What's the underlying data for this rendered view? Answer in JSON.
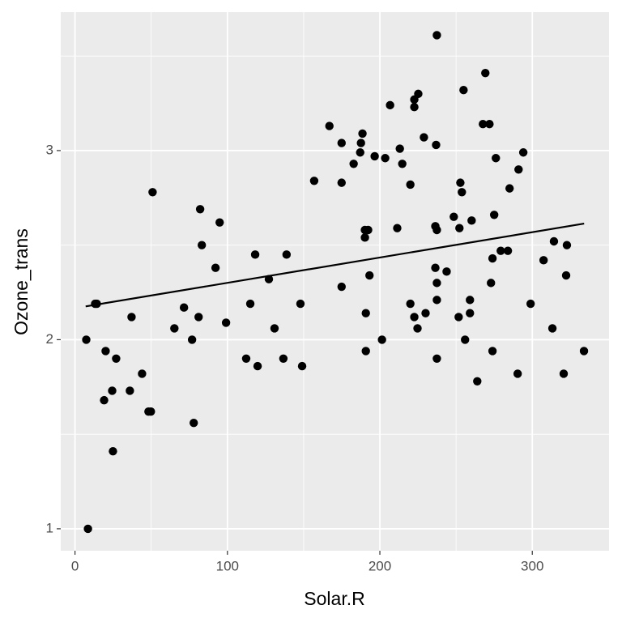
{
  "chart_data": {
    "type": "scatter",
    "x_label": "Solar.R",
    "y_label": "Ozone_trans",
    "xlim": [
      -9.35,
      350.35
    ],
    "ylim": [
      0.884,
      3.732
    ],
    "xticks": [
      0,
      100,
      200,
      300
    ],
    "yticks": [
      1,
      2,
      3
    ],
    "x_minor": [
      50,
      150,
      250
    ],
    "y_minor": [
      1.5,
      2.5,
      3.5
    ],
    "grid": true,
    "color": "#000000",
    "x": [
      7.4,
      8.5,
      13.2,
      14.3,
      20.1,
      19.1,
      24.4,
      27,
      24.9,
      37.1,
      36,
      44,
      48.2,
      49.8,
      50.9,
      65.2,
      71.5,
      76.8,
      77.9,
      81.1,
      82.1,
      83.2,
      92.2,
      94.9,
      99.1,
      112.3,
      115,
      118.2,
      119.8,
      127.2,
      130.9,
      136.7,
      138.8,
      147.9,
      149,
      156.9,
      166.9,
      174.9,
      174.9,
      174.9,
      182.8,
      187.1,
      188.6,
      187.6,
      190.2,
      190.2,
      192.3,
      193.2,
      190.8,
      190.8,
      196.6,
      201.4,
      203.5,
      206.7,
      211.4,
      213.1,
      214.7,
      220,
      220,
      222.6,
      224.7,
      222.6,
      225.2,
      222.6,
      228.9,
      230,
      236.9,
      237.4,
      236.4,
      237.4,
      236.4,
      237.4,
      237.4,
      237.4,
      243.8,
      248.5,
      252.8,
      253.8,
      252.2,
      251.7,
      254.9,
      255.9,
      259.1,
      260.2,
      259.1,
      263.9,
      267.6,
      269.2,
      271.9,
      272.9,
      273.9,
      273.9,
      275,
      276.1,
      279.3,
      284,
      285.1,
      290.4,
      291,
      294.1,
      298.9,
      307.4,
      313.2,
      314.2,
      320.6,
      322.2,
      322.7,
      333.9
    ],
    "y": [
      2.0,
      1.0,
      2.19,
      2.19,
      1.94,
      1.68,
      1.73,
      1.9,
      1.41,
      2.12,
      1.73,
      1.82,
      1.62,
      1.62,
      2.78,
      2.06,
      2.17,
      2.0,
      1.56,
      2.12,
      2.69,
      2.5,
      2.38,
      2.62,
      2.09,
      1.9,
      2.19,
      2.45,
      1.86,
      2.32,
      2.06,
      1.9,
      2.45,
      2.19,
      1.86,
      2.84,
      3.13,
      2.28,
      3.04,
      2.83,
      2.93,
      2.99,
      3.09,
      3.04,
      2.54,
      2.58,
      2.58,
      2.34,
      2.14,
      1.94,
      2.97,
      2.0,
      2.96,
      3.24,
      2.59,
      3.01,
      2.93,
      2.82,
      2.19,
      2.12,
      2.06,
      3.27,
      3.3,
      3.23,
      3.07,
      2.14,
      3.03,
      3.61,
      2.6,
      2.58,
      2.38,
      2.3,
      2.21,
      1.9,
      2.36,
      2.65,
      2.83,
      2.78,
      2.59,
      2.12,
      3.32,
      2.0,
      2.21,
      2.63,
      2.14,
      1.78,
      3.14,
      3.41,
      3.14,
      2.3,
      2.43,
      1.94,
      2.66,
      2.96,
      2.47,
      2.47,
      2.8,
      1.82,
      2.9,
      2.99,
      2.19,
      2.42,
      2.06,
      2.52,
      1.82,
      2.34,
      2.5,
      1.94
    ],
    "trend": {
      "x": [
        7,
        334
      ],
      "y": [
        2.176,
        2.614
      ]
    }
  }
}
